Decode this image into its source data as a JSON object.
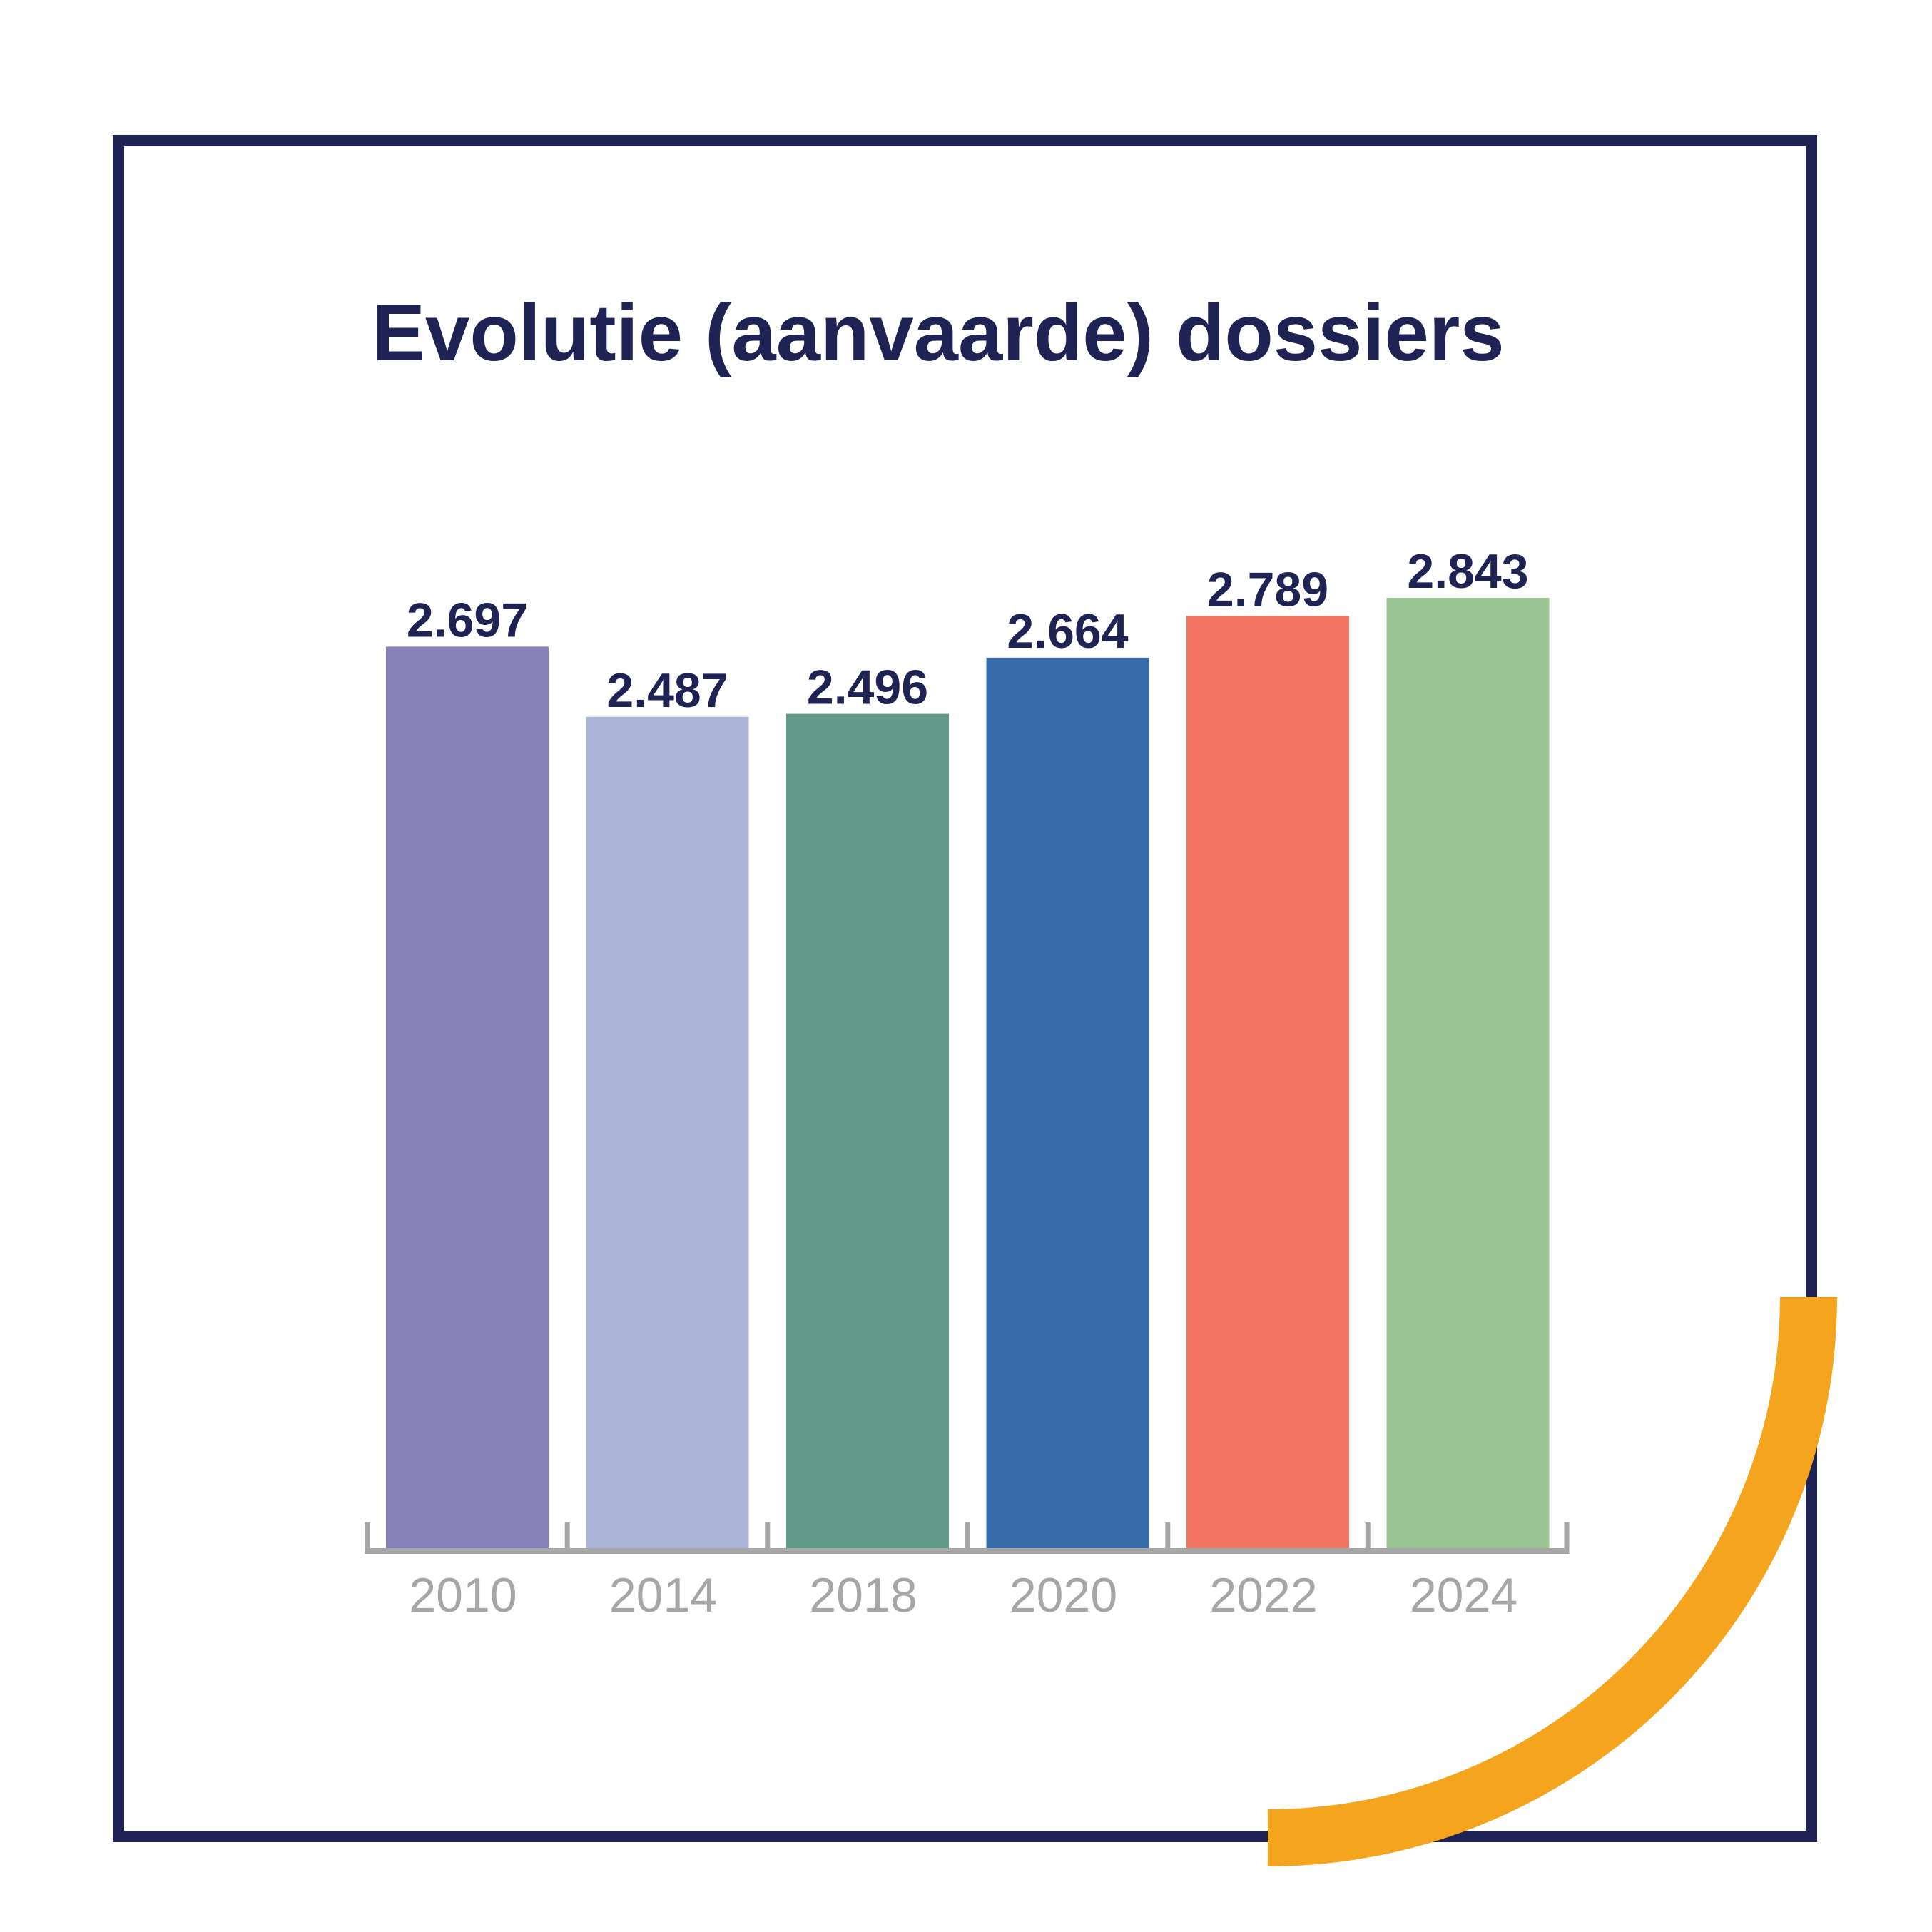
{
  "colors": {
    "frame": "#1f2354",
    "title": "#1f2354",
    "value_label": "#1f2354",
    "axis": "#a6a6a6",
    "tick_label": "#a6a6a6",
    "accent_arc": "#f5a41d",
    "background": "#ffffff"
  },
  "chart_data": {
    "type": "bar",
    "title": "Evolutie (aanvaarde) dossiers",
    "xlabel": "",
    "ylabel": "",
    "categories": [
      "2010",
      "2014",
      "2018",
      "2020",
      "2022",
      "2024"
    ],
    "values": [
      2697,
      2487,
      2496,
      2664,
      2789,
      2843
    ],
    "value_labels": [
      "2.697",
      "2.487",
      "2.496",
      "2.664",
      "2.789",
      "2.843"
    ],
    "bar_colors": [
      "#8681b9",
      "#abb3d6",
      "#629a89",
      "#366ba9",
      "#f27462",
      "#9bc593"
    ],
    "ylim": [
      0,
      2843
    ],
    "grid": false,
    "legend": "none"
  }
}
